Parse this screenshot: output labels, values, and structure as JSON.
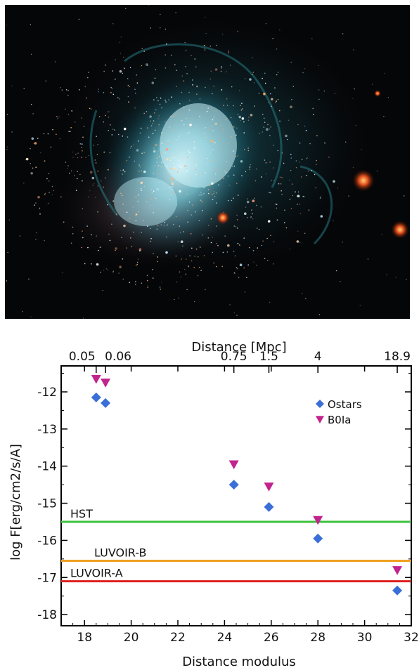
{
  "chart_data": {
    "type": "scatter",
    "top_axis": {
      "label": "Distance [Mpc]",
      "ticks": [
        {
          "label": "0.05",
          "at": 18.5
        },
        {
          "label": "0.06",
          "at": 18.9
        },
        {
          "label": "0.75",
          "at": 24.4
        },
        {
          "label": "1.5",
          "at": 25.9
        },
        {
          "label": "4",
          "at": 28.0
        },
        {
          "label": "18.9",
          "at": 31.4
        }
      ]
    },
    "xlabel": "Distance modulus",
    "ylabel": "log F[erg/cm2/s/A]",
    "xlim": [
      17,
      32
    ],
    "ylim": [
      -18.3,
      -11.3
    ],
    "xticks": [
      18,
      20,
      22,
      24,
      26,
      28,
      30,
      32
    ],
    "yticks": [
      -18,
      -17,
      -16,
      -15,
      -14,
      -13,
      -12
    ],
    "series": [
      {
        "name": "Ostars",
        "marker": "diamond",
        "color": "#3b6fd8",
        "x": [
          18.5,
          18.9,
          24.4,
          25.9,
          28.0,
          31.4
        ],
        "y": [
          -12.15,
          -12.3,
          -14.5,
          -15.1,
          -15.95,
          -17.35
        ]
      },
      {
        "name": "B0Ia",
        "marker": "triangle-down",
        "color": "#c2248e",
        "x": [
          18.5,
          18.9,
          24.4,
          25.9,
          28.0,
          31.4
        ],
        "y": [
          -11.65,
          -11.75,
          -13.95,
          -14.55,
          -15.45,
          -16.8
        ]
      }
    ],
    "reference_lines": [
      {
        "label": "HST",
        "y": -15.5,
        "color": "#3cc23c"
      },
      {
        "label": "LUVOIR-B",
        "y": -16.55,
        "color": "#f0a020"
      },
      {
        "label": "LUVOIR-A",
        "y": -17.1,
        "color": "#e02020"
      }
    ],
    "legend": "top-right",
    "grid": false
  }
}
